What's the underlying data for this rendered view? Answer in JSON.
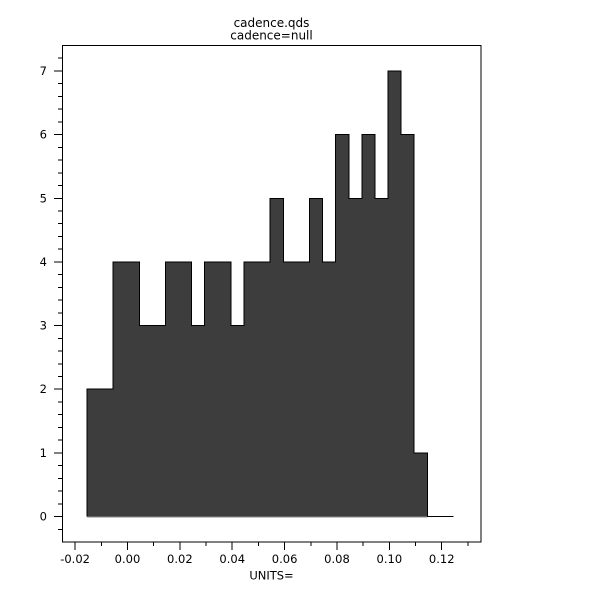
{
  "window": {
    "background": "#ffffff"
  },
  "chart_data": {
    "type": "bar",
    "subtype": "histogram",
    "title": "cadence.qds",
    "subtitle": "cadence=null",
    "xlabel": "UNITS=",
    "ylabel": "",
    "xlim": [
      -0.025,
      0.135
    ],
    "ylim": [
      -0.4,
      7.4
    ],
    "bin_start": -0.0155,
    "bin_width": 0.005,
    "counts": [
      2,
      2,
      4,
      4,
      3,
      3,
      4,
      4,
      3,
      4,
      4,
      3,
      4,
      4,
      5,
      4,
      4,
      5,
      4,
      6,
      5,
      6,
      5,
      7,
      6,
      1,
      0,
      0
    ],
    "x_major_ticks": [
      -0.02,
      0.0,
      0.02,
      0.04,
      0.06,
      0.08,
      0.1,
      0.12
    ],
    "x_tick_labels": [
      "-0.02",
      "0.00",
      "0.02",
      "0.04",
      "0.06",
      "0.08",
      "0.10",
      "0.12"
    ],
    "x_minor_step": 0.01,
    "y_major_ticks": [
      0,
      1,
      2,
      3,
      4,
      5,
      6,
      7
    ],
    "y_tick_labels": [
      "0",
      "1",
      "2",
      "3",
      "4",
      "5",
      "6",
      "7"
    ],
    "y_minor_step": 0.2,
    "grid": false,
    "legend": "none",
    "colors": {
      "bar_fill": "#3d3d3d",
      "bar_outline": "#000000",
      "baseline": "#8a8a8a",
      "axis": "#000000",
      "background": "#ffffff"
    }
  }
}
